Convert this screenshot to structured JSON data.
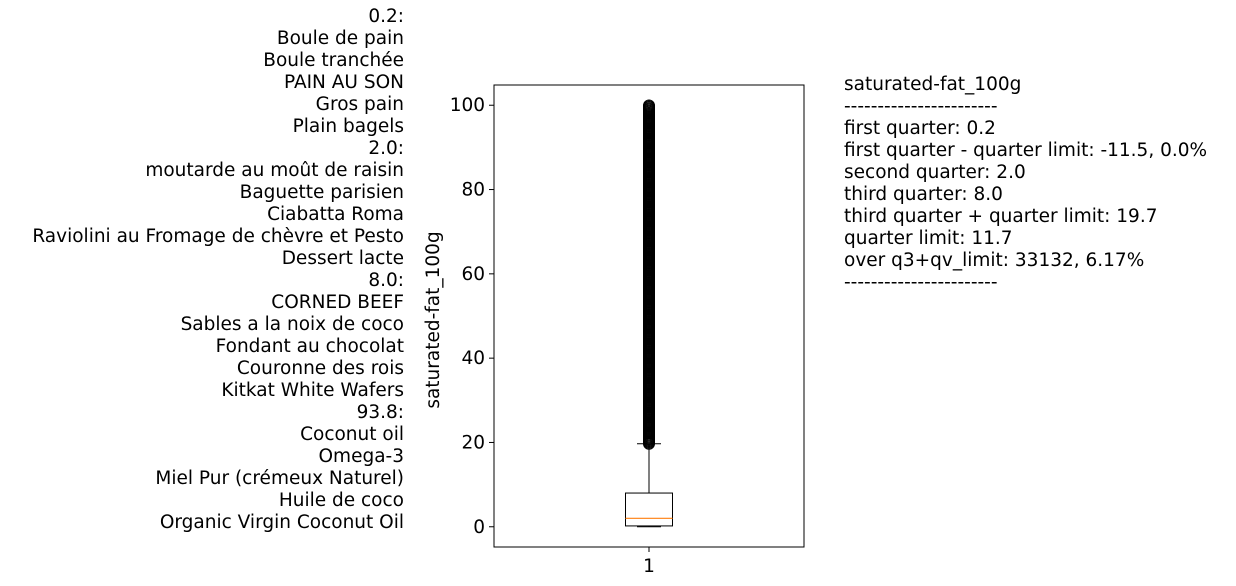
{
  "left_labels": [
    "0.2:",
    "Boule de pain",
    "Boule tranchée",
    "PAIN AU SON",
    "Gros pain",
    "Plain bagels",
    "2.0:",
    "moutarde au moût de raisin ",
    "Baguette parisien",
    "Ciabatta Roma",
    "Raviolini au Fromage de chèvre et Pesto",
    "Dessert lacte",
    "8.0:",
    "CORNED BEEF",
    "Sables a la noix de coco",
    "Fondant au chocolat",
    "Couronne des rois",
    "Kitkat White Wafers",
    "93.8:",
    "Coconut oil",
    "Omega-3",
    "Miel Pur (crémeux Naturel)",
    "Huile de coco",
    "Organic Virgin Coconut Oil"
  ],
  "stats_lines": [
    "saturated-fat_100g",
    "-----------------------",
    "first quarter: 0.2",
    "first quarter - quarter limit: -11.5, 0.0%",
    "second quarter: 2.0",
    "third quarter: 8.0",
    "third quarter + quarter limit: 19.7",
    "quarter limit: 11.7",
    "over q3+qv_limit: 33132, 6.17%",
    "-----------------------"
  ],
  "chart_data": {
    "type": "box",
    "ylabel": "saturated-fat_100g",
    "categories": [
      "1"
    ],
    "yticks": [
      0,
      20,
      40,
      60,
      80,
      100
    ],
    "ylim": [
      -4.8,
      104.8
    ],
    "grid": false,
    "box": {
      "min": 0.0,
      "q1": 0.2,
      "median": 2.0,
      "q3": 8.0,
      "upper_whisker": 19.7
    },
    "outlier_range": [
      19.7,
      100
    ],
    "colors": {
      "median": "#ff7f0e",
      "box": "#000000"
    }
  }
}
